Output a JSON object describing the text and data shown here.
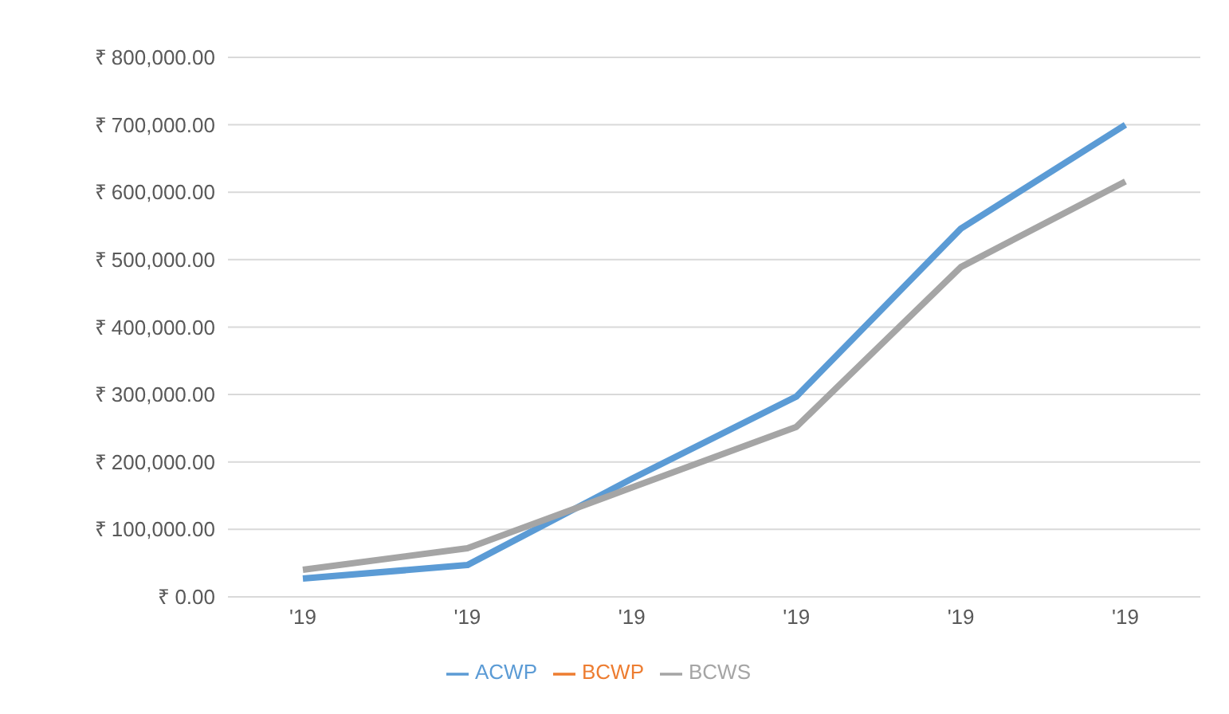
{
  "chart_data": {
    "type": "line",
    "categories": [
      "'19",
      "'19",
      "'19",
      "'19",
      "'19",
      "'19"
    ],
    "series": [
      {
        "name": "ACWP",
        "color": "#5b9bd5",
        "values": [
          27000,
          47000,
          175000,
          297000,
          546000,
          700000
        ]
      },
      {
        "name": "BCWP",
        "color": "#ed7d31",
        "values": [
          null,
          null,
          null,
          null,
          null,
          null
        ]
      },
      {
        "name": "BCWS",
        "color": "#a5a5a5",
        "values": [
          40000,
          72000,
          162000,
          252000,
          489000,
          616000
        ]
      }
    ],
    "ylim": [
      0,
      800000
    ],
    "yticks": [
      {
        "value": 0,
        "label": "₹ 0.00"
      },
      {
        "value": 100000,
        "label": "₹ 100,000.00"
      },
      {
        "value": 200000,
        "label": "₹ 200,000.00"
      },
      {
        "value": 300000,
        "label": "₹ 300,000.00"
      },
      {
        "value": 400000,
        "label": "₹ 400,000.00"
      },
      {
        "value": 500000,
        "label": "₹ 500,000.00"
      },
      {
        "value": 600000,
        "label": "₹ 600,000.00"
      },
      {
        "value": 700000,
        "label": "₹ 700,000.00"
      },
      {
        "value": 800000,
        "label": "₹ 800,000.00"
      }
    ],
    "grid": "y",
    "legend": "bottom",
    "marker": "none",
    "line_style": "solid"
  }
}
